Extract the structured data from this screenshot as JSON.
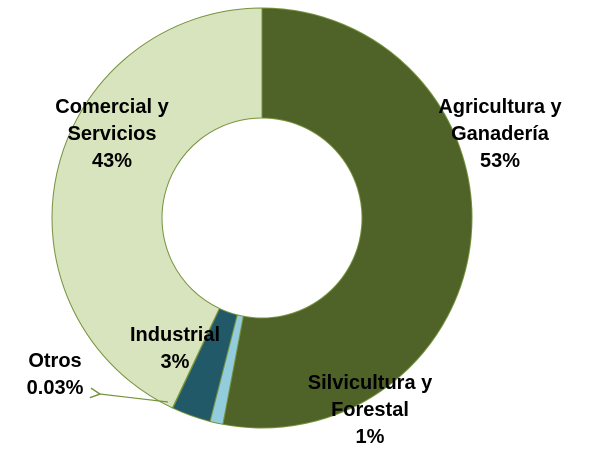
{
  "chart_data": {
    "type": "donut",
    "categories": [
      "Agricultura y Ganadería",
      "Silvicultura y Forestal",
      "Industrial",
      "Otros",
      "Comercial y Servicios"
    ],
    "values": [
      53,
      1,
      3,
      0.03,
      43
    ],
    "value_labels": [
      "53%",
      "1%",
      "3%",
      "0.03%",
      "43%"
    ],
    "colors": [
      "#4f6228",
      "#93cddd",
      "#215968",
      "#c3d69b",
      "#d7e4bd"
    ]
  }
}
